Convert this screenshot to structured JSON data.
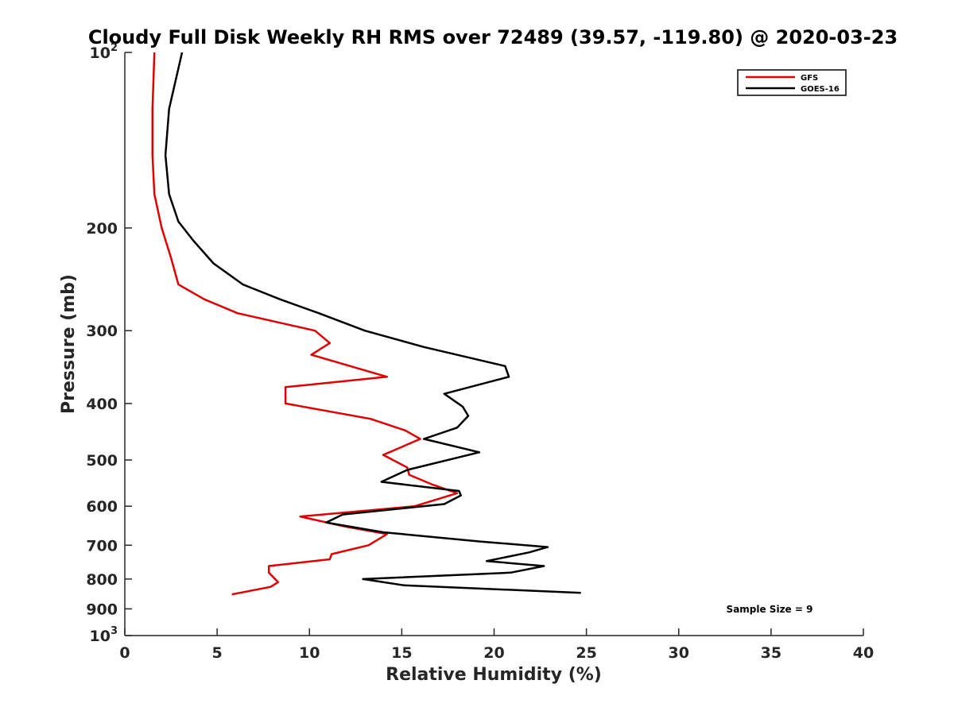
{
  "chart_data": {
    "type": "line",
    "title": "Cloudy Full Disk Weekly RH RMS over 72489 (39.57, -119.80) @ 2020-03-23",
    "xlabel": "Relative Humidity (%)",
    "ylabel": "Pressure (mb)",
    "xlim": [
      0,
      40
    ],
    "ylim": [
      100,
      1000
    ],
    "yscale": "log",
    "yreversed": true,
    "grid": false,
    "legend_position": "top-right",
    "x_ticks": [
      "0",
      "5",
      "10",
      "15",
      "20",
      "25",
      "30",
      "35",
      "40"
    ],
    "x_tick_values": [
      0,
      5,
      10,
      15,
      20,
      25,
      30,
      35,
      40
    ],
    "y_ticks": [
      {
        "value": 100,
        "base": "10",
        "exp": "2"
      },
      {
        "value": 200,
        "label": "200"
      },
      {
        "value": 300,
        "label": "300"
      },
      {
        "value": 400,
        "label": "400"
      },
      {
        "value": 500,
        "label": "500"
      },
      {
        "value": 600,
        "label": "600"
      },
      {
        "value": 700,
        "label": "700"
      },
      {
        "value": 800,
        "label": "800"
      },
      {
        "value": 900,
        "label": "900"
      },
      {
        "value": 1000,
        "base": "10",
        "exp": "3"
      }
    ],
    "annotation": "Sample Size = 9",
    "series": [
      {
        "name": "GFS",
        "color": "#e00000",
        "points": [
          [
            1.6,
            100
          ],
          [
            1.5,
            125
          ],
          [
            1.5,
            150
          ],
          [
            1.6,
            175
          ],
          [
            2.0,
            200
          ],
          [
            2.5,
            225
          ],
          [
            2.9,
            250
          ],
          [
            4.3,
            265
          ],
          [
            6.1,
            280
          ],
          [
            10.3,
            300
          ],
          [
            11.1,
            315
          ],
          [
            10.1,
            330
          ],
          [
            14.2,
            360
          ],
          [
            8.7,
            375
          ],
          [
            8.7,
            400
          ],
          [
            13.3,
            425
          ],
          [
            15.2,
            445
          ],
          [
            16.0,
            460
          ],
          [
            14.0,
            490
          ],
          [
            15.3,
            515
          ],
          [
            15.4,
            530
          ],
          [
            16.6,
            550
          ],
          [
            18.0,
            570
          ],
          [
            15.7,
            600
          ],
          [
            9.5,
            625
          ],
          [
            11.9,
            650
          ],
          [
            14.2,
            670
          ],
          [
            13.2,
            700
          ],
          [
            11.2,
            725
          ],
          [
            11.1,
            740
          ],
          [
            7.8,
            760
          ],
          [
            7.8,
            780
          ],
          [
            8.3,
            810
          ],
          [
            7.9,
            825
          ],
          [
            5.8,
            850
          ]
        ]
      },
      {
        "name": "GOES-16",
        "color": "#000000",
        "points": [
          [
            3.1,
            100
          ],
          [
            2.4,
            125
          ],
          [
            2.2,
            150
          ],
          [
            2.4,
            175
          ],
          [
            2.9,
            195
          ],
          [
            3.7,
            210
          ],
          [
            4.8,
            230
          ],
          [
            6.4,
            250
          ],
          [
            8.4,
            265
          ],
          [
            10.5,
            280
          ],
          [
            13.0,
            300
          ],
          [
            16.2,
            320
          ],
          [
            20.6,
            345
          ],
          [
            20.8,
            360
          ],
          [
            17.3,
            385
          ],
          [
            18.3,
            405
          ],
          [
            18.6,
            420
          ],
          [
            18.0,
            440
          ],
          [
            16.2,
            460
          ],
          [
            19.2,
            485
          ],
          [
            15.3,
            520
          ],
          [
            13.9,
            545
          ],
          [
            18.1,
            565
          ],
          [
            18.2,
            575
          ],
          [
            17.3,
            595
          ],
          [
            11.8,
            620
          ],
          [
            10.9,
            640
          ],
          [
            14.0,
            665
          ],
          [
            19.3,
            690
          ],
          [
            22.9,
            705
          ],
          [
            21.9,
            720
          ],
          [
            19.6,
            745
          ],
          [
            22.7,
            760
          ],
          [
            20.9,
            780
          ],
          [
            12.9,
            800
          ],
          [
            15.1,
            820
          ],
          [
            24.7,
            845
          ]
        ]
      }
    ]
  }
}
